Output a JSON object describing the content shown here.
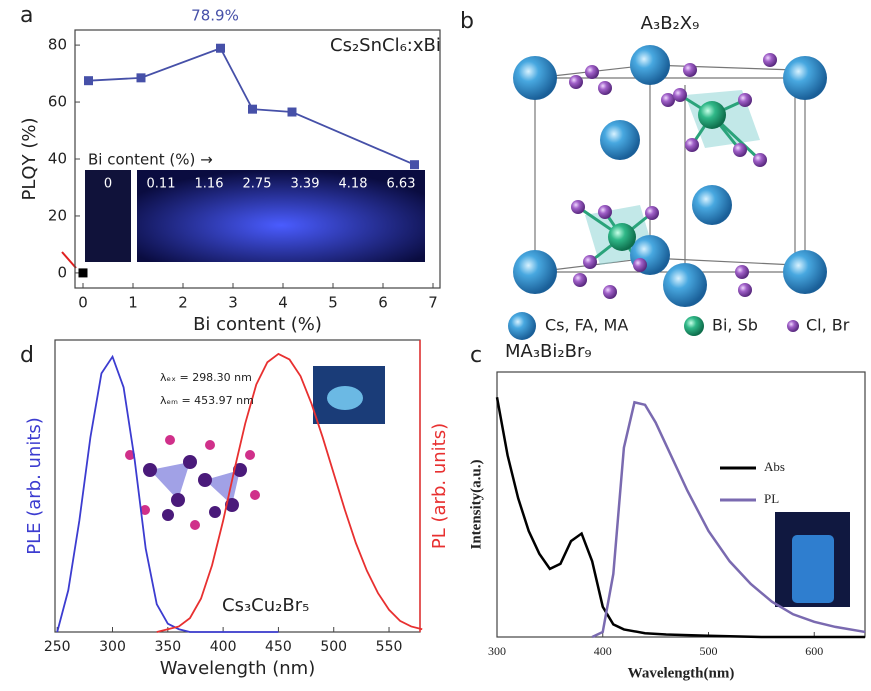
{
  "chart_data": [
    {
      "type": "line",
      "panel": "a",
      "title": "Cs₂SnCl₆:xBi",
      "peak_label": "78.9%",
      "xlabel": "Bi content (%)",
      "ylabel": "PLQY (%)",
      "xlim": [
        -0.16,
        7.14
      ],
      "xticks": [
        0,
        1,
        2,
        3,
        4,
        5,
        6,
        7
      ],
      "ylim": [
        -5.3,
        85.3
      ],
      "yticks": [
        0,
        20,
        40,
        60,
        80
      ],
      "inset": {
        "title": "Bi content (%) →",
        "labels": [
          "0",
          "0.11",
          "1.16",
          "2.75",
          "3.39",
          "4.18",
          "6.63"
        ]
      },
      "series": [
        {
          "color": "#4650a8",
          "marker": "square",
          "x": [
            0.11,
            1.16,
            2.75,
            3.39,
            4.18,
            6.63
          ],
          "values": [
            67.5,
            68.5,
            78.9,
            57.5,
            56.5,
            38
          ]
        },
        {
          "color": "#000000",
          "marker": "square",
          "line": false,
          "x": [
            0
          ],
          "values": [
            0
          ]
        }
      ]
    },
    {
      "type": "line",
      "panel": "d",
      "title": "Cs₃Cu₂Br₅",
      "annotations": [
        "λₑₓ = 298.30 nm",
        "λₑₘ = 453.97 nm"
      ],
      "xlabel": "Wavelength (nm)",
      "ylabel": "PLE (arb. units)",
      "y2label": "PL (arb. units)",
      "xlim": [
        248,
        578
      ],
      "xticks": [
        250,
        300,
        350,
        400,
        450,
        500,
        550
      ],
      "ylim": [
        0,
        1.05
      ],
      "y2lim": [
        0,
        1.05
      ],
      "series": [
        {
          "color": "#3c3cd0",
          "x": [
            250,
            260,
            270,
            280,
            290,
            300,
            310,
            320,
            330,
            340,
            350,
            360,
            370,
            380,
            400,
            420,
            450
          ],
          "values": [
            0,
            0.15,
            0.4,
            0.7,
            0.93,
            0.99,
            0.88,
            0.62,
            0.3,
            0.1,
            0.03,
            0.01,
            0,
            0,
            0,
            0,
            0
          ]
        },
        {
          "color": "#e83030",
          "axis": "y2",
          "x": [
            340,
            350,
            360,
            370,
            380,
            390,
            400,
            410,
            420,
            430,
            440,
            450,
            460,
            470,
            480,
            490,
            500,
            510,
            520,
            530,
            540,
            550,
            560,
            570,
            580
          ],
          "values": [
            0,
            0.01,
            0.02,
            0.05,
            0.12,
            0.24,
            0.4,
            0.58,
            0.75,
            0.89,
            0.97,
            1,
            0.98,
            0.92,
            0.82,
            0.7,
            0.57,
            0.44,
            0.32,
            0.22,
            0.14,
            0.08,
            0.04,
            0.02,
            0.01
          ]
        }
      ]
    },
    {
      "type": "line",
      "panel": "c",
      "title": "MA₃Bi₂Br₉",
      "xlabel": "Wavelength(nm)",
      "ylabel": "Intensity(a.u.)",
      "xlim": [
        300,
        648
      ],
      "xticks": [
        300,
        400,
        500,
        600
      ],
      "ylim": [
        0,
        1.05
      ],
      "series": [
        {
          "name": "Abs",
          "color": "#000000",
          "x": [
            300,
            310,
            320,
            330,
            340,
            350,
            360,
            370,
            380,
            390,
            400,
            410,
            420,
            440,
            460,
            500,
            550,
            600,
            648
          ],
          "values": [
            0.95,
            0.72,
            0.55,
            0.42,
            0.33,
            0.27,
            0.29,
            0.38,
            0.41,
            0.3,
            0.12,
            0.05,
            0.03,
            0.015,
            0.01,
            0.005,
            0,
            0,
            0
          ]
        },
        {
          "name": "PL",
          "color": "#7a6ab0",
          "x": [
            390,
            400,
            410,
            420,
            430,
            440,
            450,
            460,
            470,
            480,
            490,
            500,
            520,
            540,
            560,
            580,
            600,
            620,
            648
          ],
          "values": [
            0,
            0.02,
            0.25,
            0.75,
            0.93,
            0.92,
            0.85,
            0.76,
            0.67,
            0.58,
            0.5,
            0.42,
            0.3,
            0.21,
            0.14,
            0.09,
            0.06,
            0.04,
            0.02
          ]
        }
      ]
    }
  ],
  "structure": {
    "panel": "b",
    "title": "A₃B₂X₉",
    "legend": [
      "Cs, FA, MA",
      "Bi, Sb",
      "Cl, Br"
    ]
  }
}
